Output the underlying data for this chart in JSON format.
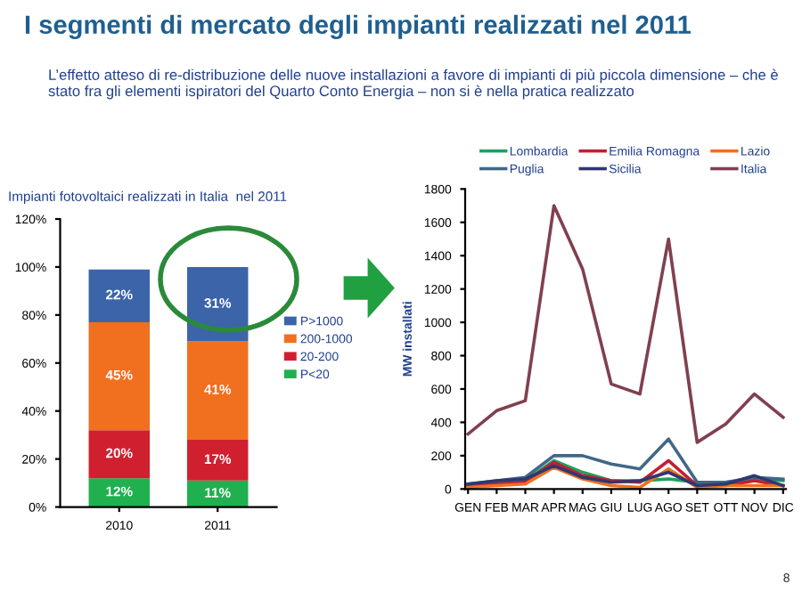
{
  "chart_data": [
    {
      "type": "bar",
      "title": "I segmenti di mercato degli impianti realizzati nel 2011",
      "subtitle": "L’effetto atteso di re-distribuzione delle nuove installazioni a favore di impianti di più piccola dimensione – che è stato fra gli elementi ispiratori del Quarto Conto Energia – non si è nella pratica realizzato",
      "annotations": [
        "Impianti fotovoltaici realizzati in Italia  nel 2011",
        "8"
      ],
      "categories": [
        "2010",
        "2011"
      ],
      "stacked": true,
      "legend": "right",
      "series": [
        {
          "name": "P<20",
          "color": "#20b050",
          "values": [
            12,
            11
          ],
          "value_labels": [
            "12%",
            "11%"
          ]
        },
        {
          "name": "20-200",
          "color": "#d02030",
          "values": [
            20,
            17
          ],
          "value_labels": [
            "20%",
            "17%"
          ]
        },
        {
          "name": "200-1000",
          "color": "#f07020",
          "values": [
            45,
            41
          ],
          "value_labels": [
            "45%",
            "41%"
          ]
        },
        {
          "name": "P>1000",
          "color": "#3c64a8",
          "values": [
            22,
            31
          ],
          "value_labels": [
            "22%",
            "31%"
          ]
        }
      ],
      "ylim": [
        0,
        120
      ],
      "yticks": [
        {
          "value": 0,
          "label": "0%"
        },
        {
          "value": 20,
          "label": "20%"
        },
        {
          "value": 40,
          "label": "40%"
        },
        {
          "value": 60,
          "label": "60%"
        },
        {
          "value": 80,
          "label": "80%"
        },
        {
          "value": 100,
          "label": "100%"
        },
        {
          "value": 120,
          "label": "120%"
        }
      ]
    },
    {
      "type": "line",
      "ylabel": "MW installati",
      "legend": "top",
      "categories": [
        "GEN",
        "FEB",
        "MAR",
        "APR",
        "MAG",
        "GIU",
        "LUG",
        "AGO",
        "SET",
        "OTT",
        "NOV",
        "DIC"
      ],
      "series": [
        {
          "name": "Lombardia",
          "color": "#20a060",
          "values": [
            20,
            40,
            50,
            170,
            100,
            50,
            50,
            60,
            40,
            40,
            60,
            50
          ]
        },
        {
          "name": "Emilia Romagna",
          "color": "#c02030",
          "values": [
            20,
            30,
            40,
            160,
            80,
            50,
            40,
            170,
            20,
            20,
            50,
            20
          ]
        },
        {
          "name": "Lazio",
          "color": "#f07020",
          "values": [
            10,
            20,
            30,
            130,
            60,
            20,
            10,
            120,
            10,
            20,
            20,
            20
          ]
        },
        {
          "name": "Puglia",
          "color": "#406888",
          "values": [
            30,
            50,
            70,
            200,
            200,
            150,
            120,
            300,
            40,
            40,
            70,
            60
          ]
        },
        {
          "name": "Sicilia",
          "color": "#303870",
          "values": [
            30,
            50,
            60,
            140,
            70,
            40,
            50,
            100,
            20,
            30,
            80,
            20
          ]
        },
        {
          "name": "Italia",
          "color": "#804050",
          "values": [
            330,
            470,
            530,
            1700,
            1320,
            630,
            570,
            1500,
            280,
            390,
            570,
            430
          ]
        }
      ],
      "ylim": [
        0,
        1800
      ],
      "yticks": [
        0,
        200,
        400,
        600,
        800,
        1000,
        1200,
        1400,
        1600,
        1800
      ]
    }
  ]
}
